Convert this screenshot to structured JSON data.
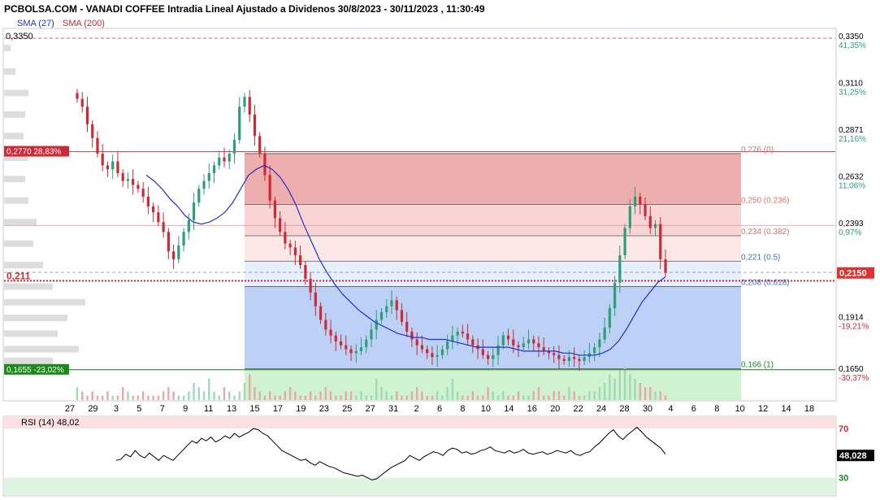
{
  "header": {
    "title": "PCBOLSA.COM - VANADI COFFEE Intradia Lineal Ajustado a Dividenos 30/8/2023 - 30/11/2023 , 11:30:49",
    "sma27_label": "SMA (27)",
    "sma200_label": "SMA (200)"
  },
  "colors": {
    "up": "#2e9e78",
    "down": "#cc2a36",
    "sma27": "#2430c8",
    "fib_red": "#e88c8c",
    "fib_blue": "#8fb3ee",
    "fib_green": "#a8e8a8",
    "rsi": "#000000"
  },
  "chart_data": [
    {
      "type": "candlestick",
      "title": "PCBOLSA.COM - VANADI COFFEE Intradia Lineal Ajustado a Dividenos 30/8/2023 - 30/11/2023 , 11:30:49",
      "y_ticks": [
        {
          "value": 0.335,
          "label": "0,3350",
          "pct": "41,35%"
        },
        {
          "value": 0.311,
          "label": "0,3110",
          "pct": "31,25%"
        },
        {
          "value": 0.2871,
          "label": "0,2871",
          "pct": "21,16%"
        },
        {
          "value": 0.2632,
          "label": "0,2632",
          "pct": "11,06%"
        },
        {
          "value": 0.2393,
          "label": "0,2393",
          "pct": "0,97%"
        },
        {
          "value": 0.2153,
          "label": "0,2153",
          "pct": ""
        },
        {
          "value": 0.1914,
          "label": "0,1914",
          "pct": "-19,21%"
        },
        {
          "value": 0.165,
          "label": "0,1650",
          "pct": "-30,37%"
        }
      ],
      "ylim": [
        0.162,
        0.343
      ],
      "x_labels": [
        "27",
        "29",
        "3",
        "5",
        "7",
        "9",
        "11",
        "13",
        "15",
        "17",
        "19",
        "23",
        "25",
        "27",
        "31",
        "2",
        "6",
        "8",
        "10",
        "14",
        "16",
        "20",
        "22",
        "24",
        "28",
        "30",
        "4",
        "6",
        "8",
        "10",
        "12",
        "14",
        "18"
      ],
      "top_left_price": "0,3350",
      "current_price": "0,2150",
      "left_markers": [
        {
          "label": "0,2770",
          "pct": "28,83%",
          "value": 0.277
        },
        {
          "label": "0,211",
          "value": 0.211
        },
        {
          "label": "0,1655",
          "pct": "-23,02%",
          "value": 0.1655
        }
      ],
      "fib_levels": [
        {
          "value": 0.276,
          "label": "0,276 (0)"
        },
        {
          "value": 0.25,
          "label": "0,250 (0.236)"
        },
        {
          "value": 0.234,
          "label": "0,234 (0.382)"
        },
        {
          "value": 0.221,
          "label": "0,221 (0.5)"
        },
        {
          "value": 0.208,
          "label": "0,208 (0.618)"
        },
        {
          "value": 0.166,
          "label": "0,166 (1)"
        }
      ],
      "close_series": [
        0.304,
        0.3,
        0.291,
        0.284,
        0.276,
        0.27,
        0.268,
        0.272,
        0.266,
        0.262,
        0.263,
        0.26,
        0.258,
        0.254,
        0.249,
        0.246,
        0.241,
        0.236,
        0.226,
        0.222,
        0.229,
        0.236,
        0.242,
        0.251,
        0.258,
        0.262,
        0.266,
        0.27,
        0.274,
        0.272,
        0.276,
        0.283,
        0.3,
        0.305,
        0.296,
        0.285,
        0.276,
        0.265,
        0.252,
        0.243,
        0.236,
        0.23,
        0.228,
        0.224,
        0.219,
        0.212,
        0.205,
        0.198,
        0.191,
        0.186,
        0.183,
        0.18,
        0.178,
        0.176,
        0.174,
        0.175,
        0.177,
        0.181,
        0.186,
        0.191,
        0.195,
        0.198,
        0.201,
        0.196,
        0.19,
        0.185,
        0.181,
        0.178,
        0.176,
        0.174,
        0.172,
        0.173,
        0.176,
        0.18,
        0.183,
        0.185,
        0.184,
        0.181,
        0.178,
        0.176,
        0.173,
        0.171,
        0.173,
        0.178,
        0.183,
        0.181,
        0.178,
        0.177,
        0.179,
        0.181,
        0.179,
        0.177,
        0.175,
        0.174,
        0.173,
        0.171,
        0.17,
        0.172,
        0.171,
        0.17,
        0.172,
        0.174,
        0.177,
        0.181,
        0.187,
        0.197,
        0.21,
        0.224,
        0.238,
        0.249,
        0.254,
        0.25,
        0.244,
        0.238,
        0.24,
        0.222,
        0.215
      ],
      "sma27_series": [
        0.265,
        0.262,
        0.258,
        0.253,
        0.249,
        0.244,
        0.241,
        0.24,
        0.241,
        0.243,
        0.246,
        0.251,
        0.258,
        0.265,
        0.268,
        0.27,
        0.268,
        0.264,
        0.258,
        0.25,
        0.24,
        0.231,
        0.222,
        0.215,
        0.209,
        0.204,
        0.2,
        0.196,
        0.193,
        0.19,
        0.188,
        0.186,
        0.184,
        0.183,
        0.182,
        0.182,
        0.181,
        0.181,
        0.181,
        0.18,
        0.179,
        0.178,
        0.177,
        0.177,
        0.177,
        0.177,
        0.177,
        0.176,
        0.175,
        0.175,
        0.175,
        0.175,
        0.175,
        0.174,
        0.174,
        0.173,
        0.173,
        0.173,
        0.174,
        0.176,
        0.18,
        0.186,
        0.193,
        0.2,
        0.205,
        0.21,
        0.213
      ],
      "sma27_start": 42,
      "volume_series": [
        3,
        2,
        1,
        2,
        1,
        1,
        2,
        1,
        1,
        3,
        2,
        1,
        1,
        2,
        1,
        1,
        1,
        2,
        3,
        2,
        1,
        1,
        2,
        4,
        3,
        2,
        5,
        2,
        1,
        3,
        2,
        1,
        2,
        4,
        6,
        3,
        2,
        1,
        2,
        1,
        1,
        2,
        3,
        2,
        1,
        1,
        2,
        1,
        2,
        3,
        2,
        1,
        1,
        2,
        2,
        1,
        2,
        1,
        1,
        5,
        3,
        2,
        1,
        2,
        1,
        1,
        2,
        3,
        2,
        1,
        1,
        2,
        1,
        3,
        5,
        2,
        1,
        1,
        2,
        1,
        1,
        3,
        2,
        1,
        2,
        1,
        1,
        2,
        1,
        1,
        2,
        3,
        1,
        1,
        2,
        2,
        1,
        3,
        2,
        1,
        1,
        2,
        2,
        3,
        4,
        6,
        5,
        7,
        8,
        6,
        5,
        4,
        3,
        3,
        2,
        2,
        1
      ]
    },
    {
      "type": "line",
      "title": "RSI (14)",
      "last_value": "48,02",
      "current_value": "48,028",
      "y_ticks": [
        {
          "value": 70,
          "label": "70"
        },
        {
          "value": 30,
          "label": "30"
        }
      ],
      "ylim": [
        15,
        80
      ],
      "values": [
        44,
        45,
        49,
        47,
        52,
        48,
        46,
        50,
        47,
        44,
        48,
        46,
        44,
        48,
        52,
        56,
        60,
        58,
        62,
        60,
        63,
        59,
        61,
        64,
        62,
        66,
        63,
        65,
        67,
        70,
        69,
        66,
        64,
        60,
        56,
        52,
        50,
        48,
        46,
        44,
        45,
        42,
        40,
        43,
        41,
        39,
        38,
        36,
        34,
        33,
        32,
        31,
        32,
        30,
        28,
        29,
        32,
        35,
        38,
        40,
        42,
        44,
        48,
        46,
        44,
        47,
        49,
        51,
        50,
        48,
        52,
        54,
        53,
        50,
        51,
        49,
        50,
        52,
        53,
        55,
        52,
        51,
        50,
        52,
        50,
        51,
        53,
        50,
        49,
        50,
        51,
        49,
        50,
        52,
        51,
        50,
        52,
        49,
        48,
        50,
        51,
        55,
        58,
        62,
        66,
        69,
        64,
        61,
        65,
        68,
        71,
        67,
        63,
        60,
        57,
        54,
        49
      ]
    }
  ]
}
